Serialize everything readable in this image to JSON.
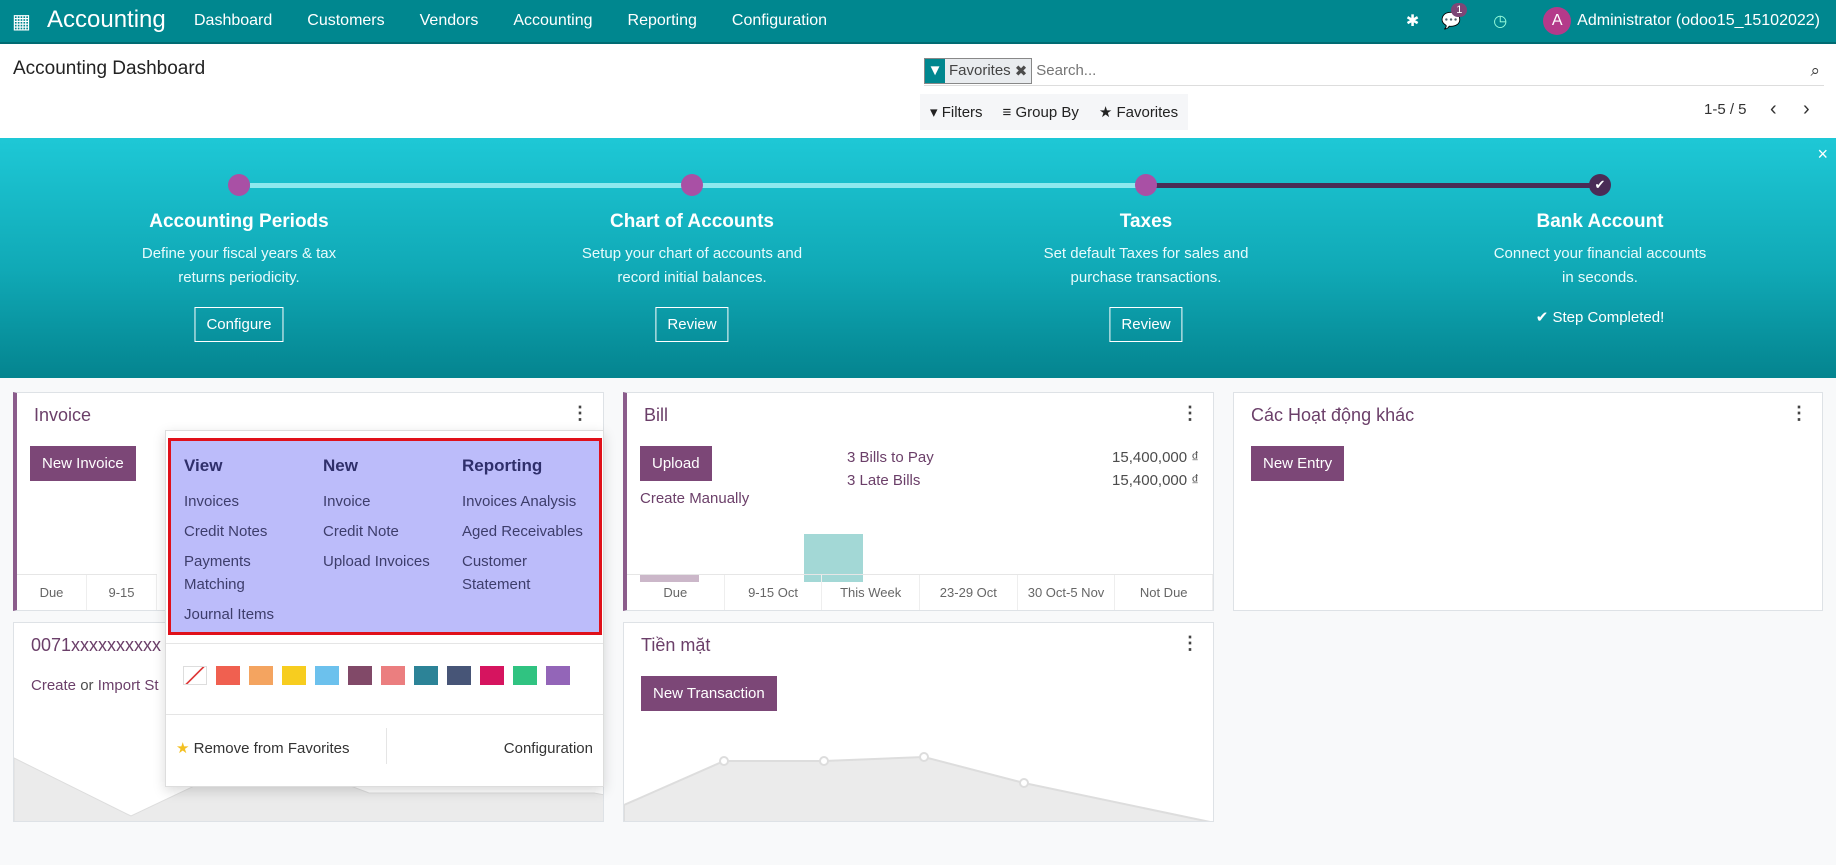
{
  "navbar": {
    "app_name": "Accounting",
    "menu": [
      "Dashboard",
      "Customers",
      "Vendors",
      "Accounting",
      "Reporting",
      "Configuration"
    ],
    "messages_count": "1",
    "avatar_letter": "A",
    "user": "Administrator (odoo15_15102022)",
    "icons": [
      "apps-grid-icon",
      "bug-icon",
      "chat-icon",
      "clock-icon"
    ]
  },
  "control_panel": {
    "title": "Accounting Dashboard",
    "facet": "Favorites",
    "search_placeholder": "Search...",
    "filters": "Filters",
    "group_by": "Group By",
    "favorites": "Favorites",
    "pager": "1-5 / 5"
  },
  "banner": {
    "steps": [
      {
        "title": "Accounting Periods",
        "line1": "Define your fiscal years & tax",
        "line2": "returns periodicity.",
        "action": "Configure"
      },
      {
        "title": "Chart of Accounts",
        "line1": "Setup your chart of accounts and",
        "line2": "record initial balances.",
        "action": "Review"
      },
      {
        "title": "Taxes",
        "line1": "Set default Taxes for sales and",
        "line2": "purchase transactions.",
        "action": "Review"
      },
      {
        "title": "Bank Account",
        "line1": "Connect your financial accounts",
        "line2": "in seconds.",
        "action": "Step Completed!"
      }
    ],
    "close": "×"
  },
  "cards": {
    "invoice": {
      "title": "Invoice",
      "button": "New Invoice",
      "axis": [
        "Due",
        "9-15"
      ]
    },
    "bill": {
      "title": "Bill",
      "button": "Upload",
      "link": "Create Manually",
      "stats": [
        {
          "label": "3 Bills to Pay",
          "value": "15,400,000 ₫"
        },
        {
          "label": "3 Late Bills",
          "value": "15,400,000 ₫"
        }
      ],
      "axis": [
        "Due",
        "9-15 Oct",
        "This Week",
        "23-29 Oct",
        "30 Oct-5 Nov",
        "Not Due"
      ]
    },
    "misc": {
      "title": "Các Hoạt động khác",
      "button": "New Entry"
    },
    "bank": {
      "title": "0071xxxxxxxxxx",
      "link_create": "Create",
      "link_or": " or ",
      "link_import": "Import Sta"
    },
    "cash": {
      "title": "Tiền mặt",
      "button": "New Transaction"
    }
  },
  "dropdown": {
    "view": {
      "header": "View",
      "items": [
        "Invoices",
        "Credit Notes",
        "Payments Matching",
        "Journal Items"
      ]
    },
    "new": {
      "header": "New",
      "items": [
        "Invoice",
        "Credit Note",
        "Upload Invoices"
      ]
    },
    "reporting": {
      "header": "Reporting",
      "items": [
        "Invoices Analysis",
        "Aged Receivables",
        "Customer Statement"
      ]
    },
    "colors": [
      "#f06050",
      "#f4a460",
      "#f7cd1f",
      "#6cc1ed",
      "#814968",
      "#eb7e7f",
      "#2c8397",
      "#475577",
      "#d6145f",
      "#30c381",
      "#9365b8"
    ],
    "remove_favorites": "Remove from Favorites",
    "configuration": "Configuration"
  }
}
